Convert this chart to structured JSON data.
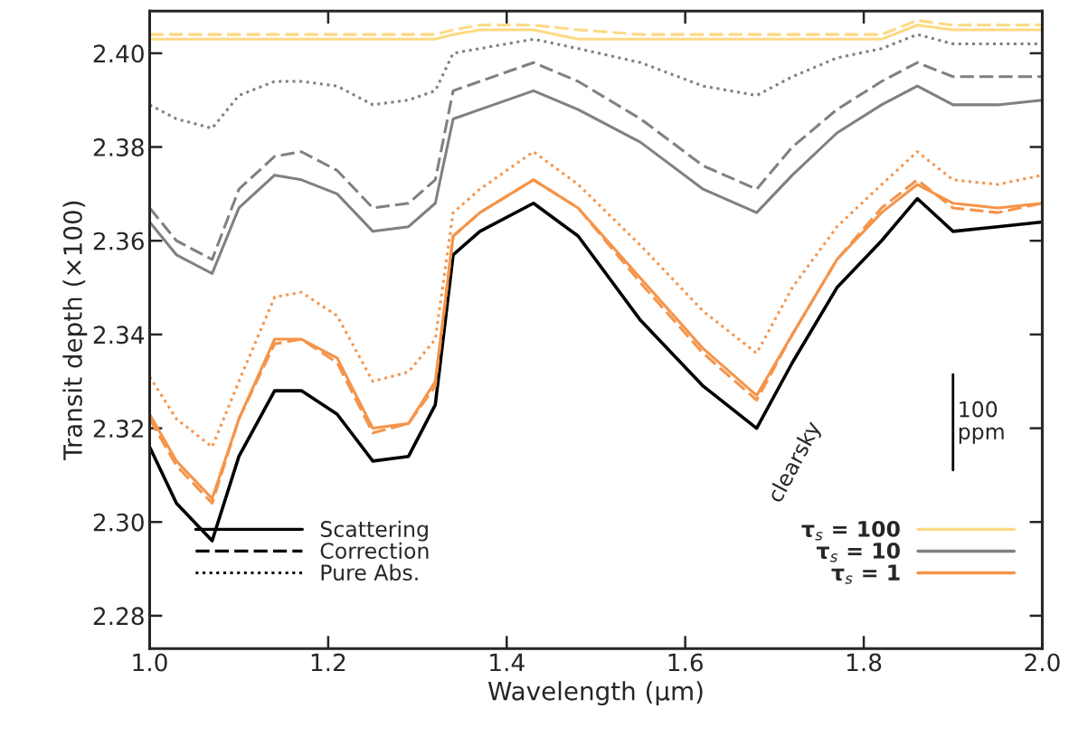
{
  "chart_data": {
    "type": "line",
    "xlabel": "Wavelength (μm)",
    "ylabel": "Transit depth (×100)",
    "x": [
      1.0,
      1.03,
      1.07,
      1.1,
      1.14,
      1.17,
      1.21,
      1.25,
      1.29,
      1.32,
      1.34,
      1.37,
      1.43,
      1.48,
      1.55,
      1.62,
      1.68,
      1.72,
      1.77,
      1.82,
      1.86,
      1.9,
      1.95,
      2.0
    ],
    "xlim": [
      1.0,
      2.0
    ],
    "ylim": [
      2.273,
      2.409
    ],
    "xticks": [
      {
        "value": 1.0,
        "label": "1.0"
      },
      {
        "value": 1.2,
        "label": "1.2"
      },
      {
        "value": 1.4,
        "label": "1.4"
      },
      {
        "value": 1.6,
        "label": "1.6"
      },
      {
        "value": 1.8,
        "label": "1.8"
      },
      {
        "value": 2.0,
        "label": "2.0"
      }
    ],
    "yticks": [
      2.28,
      {
        "value": 2.3,
        "label": "2.30"
      },
      2.32,
      2.34,
      2.36,
      2.38,
      {
        "value": 2.4,
        "label": "2.40"
      }
    ],
    "grid": false,
    "legend": "bottom right",
    "series": [
      {
        "color": "#000000",
        "line_style": "solid",
        "values": [
          2.316,
          2.304,
          2.296,
          2.314,
          2.328,
          2.328,
          2.323,
          2.313,
          2.314,
          2.325,
          2.357,
          2.362,
          2.368,
          2.361,
          2.343,
          2.329,
          2.32,
          2.334,
          2.35,
          2.36,
          2.369,
          2.362,
          2.363,
          2.364
        ]
      },
      {
        "name": "τ$_{s}$ = 100",
        "color": "#fdd983",
        "line_style": "solid",
        "values": [
          2.403,
          2.403,
          2.403,
          2.403,
          2.403,
          2.403,
          2.403,
          2.403,
          2.403,
          2.403,
          2.404,
          2.405,
          2.405,
          2.403,
          2.403,
          2.403,
          2.403,
          2.403,
          2.403,
          2.403,
          2.406,
          2.405,
          2.405,
          2.405
        ]
      },
      {
        "color": "#fdd983",
        "line_style": "dashed",
        "values": [
          2.404,
          2.404,
          2.404,
          2.404,
          2.404,
          2.404,
          2.404,
          2.404,
          2.404,
          2.404,
          2.405,
          2.406,
          2.406,
          2.405,
          2.404,
          2.404,
          2.404,
          2.404,
          2.404,
          2.404,
          2.407,
          2.406,
          2.406,
          2.406
        ]
      },
      {
        "color": "#808080",
        "line_style": "dotted",
        "values": [
          2.389,
          2.386,
          2.384,
          2.391,
          2.394,
          2.394,
          2.393,
          2.389,
          2.39,
          2.392,
          2.4,
          2.401,
          2.403,
          2.401,
          2.398,
          2.393,
          2.391,
          2.395,
          2.399,
          2.401,
          2.404,
          2.402,
          2.402,
          2.402
        ]
      },
      {
        "color": "#808080",
        "line_style": "dashed",
        "values": [
          2.367,
          2.36,
          2.356,
          2.371,
          2.378,
          2.379,
          2.375,
          2.367,
          2.368,
          2.373,
          2.392,
          2.394,
          2.398,
          2.394,
          2.386,
          2.376,
          2.371,
          2.38,
          2.388,
          2.394,
          2.398,
          2.395,
          2.395,
          2.395
        ]
      },
      {
        "name": "τ$_{s}$ = 10",
        "color": "#808080",
        "line_style": "solid",
        "values": [
          2.364,
          2.357,
          2.353,
          2.367,
          2.374,
          2.373,
          2.37,
          2.362,
          2.363,
          2.368,
          2.386,
          2.388,
          2.392,
          2.388,
          2.381,
          2.371,
          2.366,
          2.374,
          2.383,
          2.389,
          2.393,
          2.389,
          2.389,
          2.39
        ]
      },
      {
        "color": "#f5944a",
        "line_style": "dotted",
        "values": [
          2.331,
          2.322,
          2.316,
          2.33,
          2.348,
          2.349,
          2.344,
          2.33,
          2.332,
          2.339,
          2.366,
          2.371,
          2.379,
          2.372,
          2.359,
          2.345,
          2.336,
          2.35,
          2.363,
          2.372,
          2.379,
          2.373,
          2.372,
          2.374
        ]
      },
      {
        "name": "τ$_{s}$ = 1",
        "color": "#f5944a",
        "line_style": "solid",
        "values": [
          2.323,
          2.313,
          2.305,
          2.322,
          2.339,
          2.339,
          2.335,
          2.32,
          2.321,
          2.33,
          2.361,
          2.366,
          2.373,
          2.367,
          2.352,
          2.337,
          2.327,
          2.34,
          2.356,
          2.366,
          2.372,
          2.368,
          2.367,
          2.368
        ]
      },
      {
        "color": "#f5944a",
        "line_style": "dashed",
        "values": [
          2.322,
          2.312,
          2.304,
          2.322,
          2.338,
          2.339,
          2.334,
          2.319,
          2.321,
          2.329,
          2.361,
          2.366,
          2.373,
          2.367,
          2.351,
          2.336,
          2.326,
          2.34,
          2.356,
          2.367,
          2.373,
          2.367,
          2.366,
          2.368
        ]
      }
    ],
    "annotations": [
      "Scattering",
      "Correction",
      "Pure Abs.",
      {
        "text": "clearsky",
        "x": 1.69,
        "y": 2.322
      },
      "100\nppm"
    ]
  }
}
